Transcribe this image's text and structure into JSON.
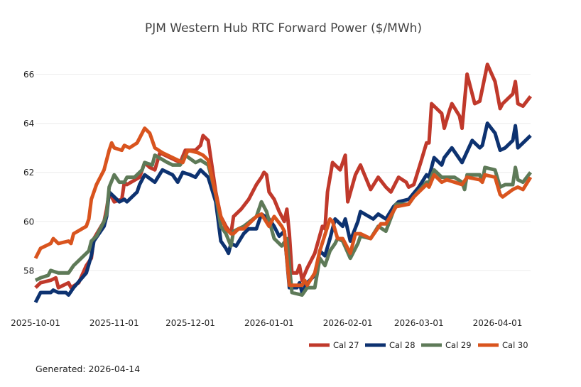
{
  "chart_data": {
    "type": "line",
    "title": "PJM Western Hub RTC Forward Power ($/MWh)",
    "xlabel": "",
    "ylabel": "",
    "x_unit": "days since 2025-10-01",
    "xlim": [
      0,
      195
    ],
    "ylim": [
      56.29,
      67.0
    ],
    "grid": "horizontal",
    "legend_position": "bottom-right",
    "y_ticks": [
      58,
      60,
      62,
      64,
      66
    ],
    "x_ticks": [
      {
        "day": 0,
        "label": "2025-10-01"
      },
      {
        "day": 31,
        "label": "2025-11-01"
      },
      {
        "day": 61,
        "label": "2025-12-01"
      },
      {
        "day": 92,
        "label": "2026-01-01"
      },
      {
        "day": 123,
        "label": "2026-02-01"
      },
      {
        "day": 151,
        "label": "2026-03-01"
      },
      {
        "day": 182,
        "label": "2026-04-01"
      }
    ],
    "series": [
      {
        "name": "Cal 27",
        "color": "#c0392b",
        "x": [
          0,
          2,
          6,
          8,
          9,
          13,
          14,
          17,
          20,
          22,
          23,
          27,
          28,
          29,
          31,
          34,
          35,
          36,
          41,
          42,
          43,
          45,
          47,
          49,
          53,
          57,
          59,
          63,
          65,
          66,
          68,
          71,
          73,
          75,
          77,
          78,
          81,
          84,
          87,
          89,
          90,
          91,
          92,
          94,
          96,
          98,
          99,
          100,
          101,
          103,
          104,
          105,
          107,
          110,
          113,
          114,
          115,
          117,
          120,
          122,
          123,
          126,
          128,
          132,
          135,
          138,
          140,
          143,
          146,
          147,
          149,
          152,
          154,
          155,
          156,
          160,
          161,
          163,
          164,
          167,
          168,
          170,
          173,
          175,
          178,
          181,
          183,
          184,
          188,
          189,
          190,
          192,
          195
        ],
        "y": [
          57.3,
          57.5,
          57.6,
          57.7,
          57.3,
          57.5,
          57.3,
          57.5,
          58.2,
          58.5,
          59.3,
          60.0,
          60.5,
          61.2,
          60.8,
          60.9,
          61.6,
          61.5,
          61.8,
          62.1,
          62.4,
          62.2,
          62.1,
          62.8,
          62.6,
          62.4,
          62.9,
          62.9,
          63.1,
          63.5,
          63.3,
          61.2,
          60.2,
          59.8,
          59.5,
          60.2,
          60.5,
          60.9,
          61.5,
          61.8,
          62.0,
          61.9,
          61.2,
          60.9,
          60.4,
          60.0,
          60.5,
          59.5,
          57.9,
          57.9,
          58.2,
          57.6,
          58.1,
          58.7,
          59.8,
          59.7,
          61.2,
          62.4,
          62.1,
          62.7,
          60.8,
          61.9,
          62.3,
          61.3,
          61.8,
          61.4,
          61.2,
          61.8,
          61.6,
          61.4,
          61.5,
          62.5,
          63.2,
          63.2,
          64.8,
          64.4,
          63.8,
          64.5,
          64.8,
          64.3,
          63.8,
          66.0,
          64.8,
          64.9,
          66.4,
          65.7,
          64.6,
          64.8,
          65.2,
          65.7,
          64.8,
          64.7,
          65.1
        ]
      },
      {
        "name": "Cal 28",
        "color": "#0d3270",
        "x": [
          0,
          2,
          6,
          7,
          9,
          12,
          13,
          15,
          20,
          22,
          23,
          27,
          28,
          29,
          33,
          35,
          36,
          40,
          41,
          43,
          47,
          50,
          52,
          54,
          56,
          58,
          61,
          63,
          65,
          68,
          71,
          73,
          75,
          76,
          77,
          79,
          82,
          84,
          87,
          89,
          92,
          94,
          96,
          98,
          100,
          103,
          104,
          105,
          107,
          110,
          112,
          114,
          116,
          118,
          121,
          122,
          124,
          127,
          128,
          133,
          135,
          138,
          141,
          143,
          147,
          151,
          154,
          155,
          157,
          160,
          161,
          164,
          168,
          172,
          175,
          176,
          178,
          181,
          183,
          185,
          188,
          189,
          190,
          192,
          195
        ],
        "y": [
          56.7,
          57.1,
          57.1,
          57.2,
          57.1,
          57.1,
          57.0,
          57.3,
          57.9,
          58.6,
          59.2,
          59.8,
          60.2,
          61.2,
          60.8,
          60.9,
          60.8,
          61.2,
          61.5,
          61.9,
          61.6,
          62.1,
          62.0,
          61.9,
          61.6,
          62.0,
          61.9,
          61.8,
          62.1,
          61.8,
          60.8,
          59.2,
          58.9,
          58.7,
          59.1,
          59.0,
          59.5,
          59.7,
          59.7,
          60.3,
          60.1,
          59.8,
          59.4,
          59.6,
          57.3,
          57.3,
          57.5,
          57.1,
          57.5,
          57.8,
          58.8,
          58.6,
          59.3,
          60.1,
          59.8,
          60.1,
          59.2,
          60.0,
          60.4,
          60.1,
          60.3,
          60.1,
          60.6,
          60.8,
          60.9,
          61.4,
          61.9,
          61.8,
          62.6,
          62.3,
          62.6,
          63.0,
          62.4,
          63.3,
          63.0,
          63.1,
          64.0,
          63.6,
          62.9,
          63.0,
          63.3,
          63.9,
          63.0,
          63.2,
          63.5
        ]
      },
      {
        "name": "Cal 29",
        "color": "#5e7a58",
        "x": [
          0,
          2,
          5,
          6,
          9,
          12,
          13,
          15,
          18,
          21,
          22,
          24,
          27,
          28,
          29,
          31,
          33,
          35,
          36,
          39,
          42,
          43,
          46,
          47,
          52,
          54,
          57,
          59,
          63,
          65,
          68,
          71,
          73,
          75,
          77,
          78,
          82,
          87,
          89,
          91,
          94,
          97,
          99,
          101,
          105,
          107,
          110,
          112,
          114,
          116,
          118,
          119,
          121,
          124,
          127,
          128,
          132,
          135,
          138,
          142,
          147,
          149,
          154,
          155,
          157,
          160,
          162,
          165,
          168,
          169,
          170,
          175,
          176,
          177,
          181,
          183,
          185,
          188,
          189,
          190,
          192,
          195
        ],
        "y": [
          57.6,
          57.7,
          57.8,
          58.0,
          57.9,
          57.9,
          57.9,
          58.2,
          58.5,
          58.8,
          59.2,
          59.4,
          60.0,
          60.3,
          61.4,
          61.9,
          61.6,
          61.6,
          61.8,
          61.8,
          62.1,
          62.4,
          62.3,
          62.7,
          62.4,
          62.3,
          62.3,
          62.7,
          62.4,
          62.5,
          62.3,
          61.1,
          59.8,
          59.5,
          59.0,
          59.6,
          59.8,
          60.2,
          60.8,
          60.4,
          59.3,
          59.0,
          59.3,
          57.1,
          57.0,
          57.3,
          57.3,
          58.5,
          58.2,
          58.8,
          59.1,
          59.3,
          59.2,
          58.5,
          59.1,
          59.4,
          59.3,
          59.8,
          59.6,
          60.7,
          60.7,
          61.0,
          61.6,
          61.6,
          62.1,
          61.8,
          61.8,
          61.8,
          61.6,
          61.3,
          61.9,
          61.9,
          61.6,
          62.2,
          62.1,
          61.4,
          61.5,
          61.5,
          62.2,
          61.7,
          61.6,
          62.0
        ]
      },
      {
        "name": "Cal 30",
        "color": "#d9541e",
        "x": [
          0,
          2,
          6,
          7,
          9,
          13,
          14,
          15,
          20,
          21,
          22,
          24,
          27,
          29,
          30,
          31,
          34,
          35,
          37,
          40,
          43,
          45,
          47,
          50,
          54,
          58,
          60,
          64,
          66,
          68,
          71,
          73,
          75,
          77,
          78,
          80,
          82,
          87,
          89,
          92,
          94,
          97,
          98,
          100,
          103,
          105,
          106,
          107,
          110,
          112,
          116,
          117,
          119,
          121,
          124,
          126,
          128,
          132,
          136,
          138,
          142,
          147,
          149,
          154,
          155,
          157,
          160,
          162,
          168,
          170,
          175,
          176,
          177,
          181,
          183,
          184,
          188,
          190,
          192,
          195
        ],
        "y": [
          58.5,
          58.9,
          59.1,
          59.3,
          59.1,
          59.2,
          59.1,
          59.5,
          59.8,
          60.1,
          60.9,
          61.5,
          62.1,
          62.9,
          63.2,
          63.0,
          62.9,
          63.1,
          63.0,
          63.2,
          63.8,
          63.6,
          63.0,
          62.8,
          62.6,
          62.4,
          62.9,
          62.8,
          62.7,
          62.5,
          61.1,
          60.2,
          59.7,
          59.5,
          59.5,
          59.7,
          59.7,
          60.2,
          60.3,
          59.8,
          60.2,
          59.8,
          59.6,
          57.4,
          57.4,
          57.4,
          57.6,
          57.4,
          57.9,
          58.8,
          60.1,
          60.0,
          59.3,
          59.3,
          58.7,
          59.5,
          59.5,
          59.3,
          59.9,
          59.9,
          60.6,
          60.7,
          61.0,
          61.5,
          61.4,
          61.9,
          61.6,
          61.7,
          61.5,
          61.8,
          61.7,
          61.6,
          61.9,
          61.8,
          61.1,
          61.0,
          61.3,
          61.4,
          61.3,
          61.8
        ]
      }
    ]
  },
  "footer": {
    "generated": "Generated: 2026-04-14"
  }
}
